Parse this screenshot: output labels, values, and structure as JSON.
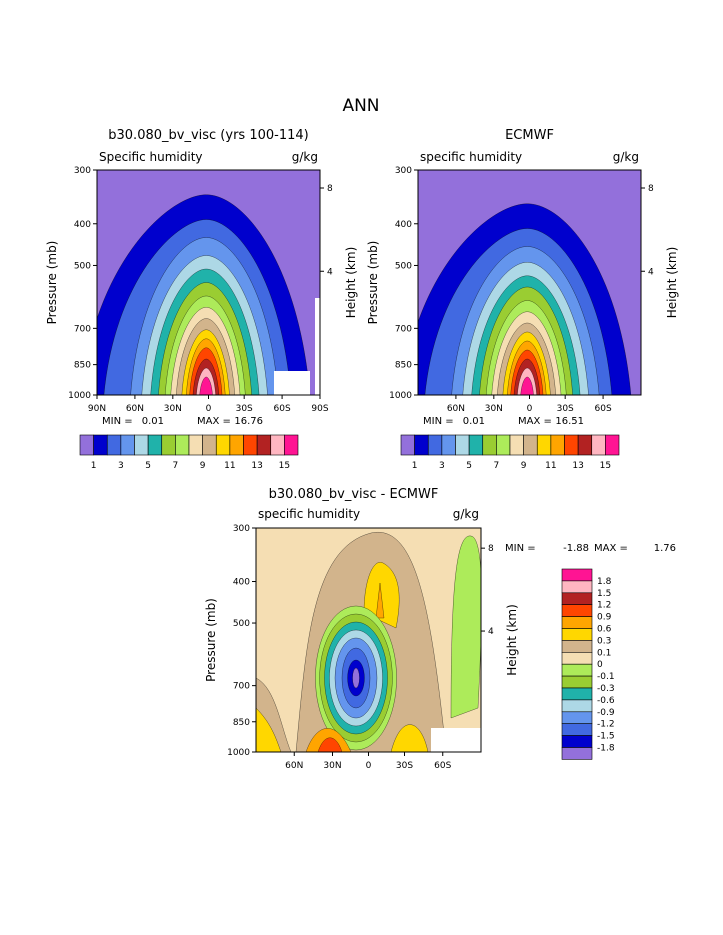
{
  "page_title": "ANN",
  "contour_colors": [
    "#9370DB",
    "#0000CD",
    "#4169E1",
    "#6495ED",
    "#ADD8E6",
    "#20B2AA",
    "#9ACD32",
    "#ADEB5A",
    "#F5DEB3",
    "#D2B48C",
    "#FFD700",
    "#FFA500",
    "#FF4500",
    "#B22222",
    "#FFB6C1",
    "#FF1493"
  ],
  "chart_data": [
    {
      "type": "heatmap",
      "title": "b30.080_bv_visc (yrs 100-114)",
      "subtitle": "Specific humidity",
      "units": "g/kg",
      "ylabel": "Pressure (mb)",
      "y2label": "Height (km)",
      "yticks": [
        "300",
        "400",
        "500",
        "700",
        "850",
        "1000"
      ],
      "y2ticks": [
        "8",
        "4"
      ],
      "xticks": [
        "90N",
        "60N",
        "30N",
        "0",
        "30S",
        "60S",
        "90S"
      ],
      "ylim": [
        1000,
        300
      ],
      "xlim": [
        90,
        -90
      ],
      "stats": {
        "min_label": "MIN =",
        "min": "0.01",
        "max_label": "MAX =",
        "max": "16.76"
      },
      "levels": [
        1,
        2,
        3,
        4,
        5,
        6,
        7,
        8,
        9,
        10,
        11,
        12,
        13,
        14,
        15
      ],
      "colorbar_labels": [
        "1",
        "3",
        "5",
        "7",
        "9",
        "11",
        "13",
        "15"
      ],
      "profile_note": "max near equator at 1000 mb, moisture decreasing poleward and upward"
    },
    {
      "type": "heatmap",
      "title": "ECMWF",
      "subtitle": "specific humidity",
      "units": "g/kg",
      "ylabel": "Pressure (mb)",
      "y2label": "Height (km)",
      "yticks": [
        "300",
        "400",
        "500",
        "700",
        "850",
        "1000"
      ],
      "y2ticks": [
        "8",
        "4"
      ],
      "xticks": [
        "60N",
        "30N",
        "0",
        "30S",
        "60S"
      ],
      "ylim": [
        1000,
        300
      ],
      "xlim": [
        90,
        -90
      ],
      "stats": {
        "min_label": "MIN =",
        "min": "0.01",
        "max_label": "MAX =",
        "max": "16.51"
      },
      "levels": [
        1,
        2,
        3,
        4,
        5,
        6,
        7,
        8,
        9,
        10,
        11,
        12,
        13,
        14,
        15
      ],
      "colorbar_labels": [
        "1",
        "3",
        "5",
        "7",
        "9",
        "11",
        "13",
        "15"
      ]
    },
    {
      "type": "heatmap",
      "title": "b30.080_bv_visc - ECMWF",
      "subtitle": "specific humidity",
      "units": "g/kg",
      "ylabel": "Pressure (mb)",
      "y2label": "Height (km)",
      "yticks": [
        "300",
        "400",
        "500",
        "700",
        "850",
        "1000"
      ],
      "y2ticks": [
        "8",
        "4"
      ],
      "xticks": [
        "60N",
        "30N",
        "0",
        "30S",
        "60S"
      ],
      "ylim": [
        1000,
        300
      ],
      "xlim": [
        90,
        -90
      ],
      "stats": {
        "min_label": "MIN =",
        "min": "-1.88",
        "max_label": "MAX =",
        "max": "1.76"
      },
      "levels": [
        -1.8,
        -1.5,
        -1.2,
        -0.9,
        -0.6,
        -0.3,
        -0.1,
        0,
        0.1,
        0.3,
        0.6,
        0.9,
        1.2,
        1.5,
        1.8
      ],
      "legend_labels": [
        "1.8",
        "1.5",
        "1.2",
        "0.9",
        "0.6",
        "0.3",
        "0.1",
        "0",
        "-0.1",
        "-0.3",
        "-0.6",
        "-0.9",
        "-1.2",
        "-1.5",
        "-1.8"
      ]
    }
  ]
}
